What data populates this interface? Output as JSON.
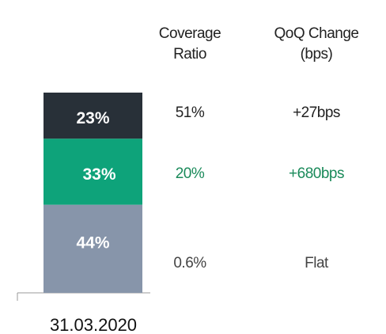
{
  "chart_data": {
    "type": "bar",
    "categories": [
      "31.03.2020"
    ],
    "series": [
      {
        "color": "#8795aa",
        "values": [
          44
        ],
        "value_labels": [
          "44%"
        ]
      },
      {
        "color": "#0ea37a",
        "values": [
          33
        ],
        "value_labels": [
          "33%"
        ]
      },
      {
        "color": "#283038",
        "values": [
          23
        ],
        "value_labels": [
          "23%"
        ]
      }
    ],
    "table": {
      "columns": [
        "Coverage Ratio",
        "QoQ Change (bps)"
      ],
      "rows": [
        {
          "color": "#222222",
          "cells": [
            "51%",
            "+27bps"
          ]
        },
        {
          "color": "#1a8a5a",
          "cells": [
            "20%",
            "+680bps"
          ]
        },
        {
          "color": "#444444",
          "cells": [
            "0.6%",
            "Flat"
          ]
        }
      ]
    }
  }
}
